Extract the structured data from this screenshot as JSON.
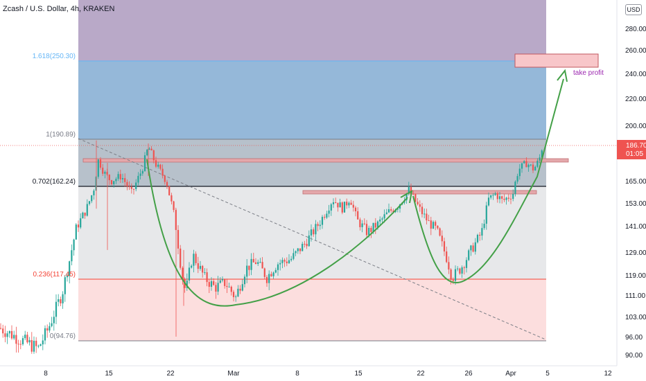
{
  "chart_data": {
    "type": "candlestick",
    "title": "Zcash / U.S. Dollar, 4h, KRAKEN",
    "currency": "USD",
    "y_ticks": [
      "280.00",
      "260.00",
      "240.00",
      "220.00",
      "200.00",
      "186.70",
      "165.00",
      "153.00",
      "141.00",
      "129.00",
      "119.00",
      "111.00",
      "103.00",
      "96.00",
      "90.00"
    ],
    "y_tick_values": [
      280,
      260,
      240,
      220,
      200,
      186.7,
      165,
      153,
      141,
      129,
      119,
      111,
      103,
      96,
      90
    ],
    "x_ticks": [
      "8",
      "15",
      "22",
      "Mar",
      "8",
      "15",
      "22",
      "26",
      "Apr",
      "5",
      "12"
    ],
    "last_price": {
      "label": "186.70",
      "value": 186.7,
      "countdown": "01:05"
    },
    "fib_levels": [
      {
        "label": "1.618(250.30)",
        "value": 250.3,
        "color": "#64b5f6"
      },
      {
        "label": "1(190.89)",
        "value": 190.89,
        "color": "#787b86"
      },
      {
        "label": "0.702(162.24)",
        "value": 162.24,
        "color": "#131722"
      },
      {
        "label": "0.236(117.45)",
        "value": 117.45,
        "color": "#f44336"
      },
      {
        "label": "0(94.76)",
        "value": 94.76,
        "color": "#787b86"
      }
    ],
    "annotation": "take profit",
    "colors": {
      "up": "#26a69a",
      "down": "#ef5350",
      "pattern": "#43a047",
      "zone_purple": "#b39ddb",
      "zone_blue": "#90b4d8",
      "zone_grey": "#e8e8ea",
      "zone_red": "#fcdcdc",
      "take_profit": "#f8bbbf"
    },
    "pattern": "cup and handle"
  }
}
